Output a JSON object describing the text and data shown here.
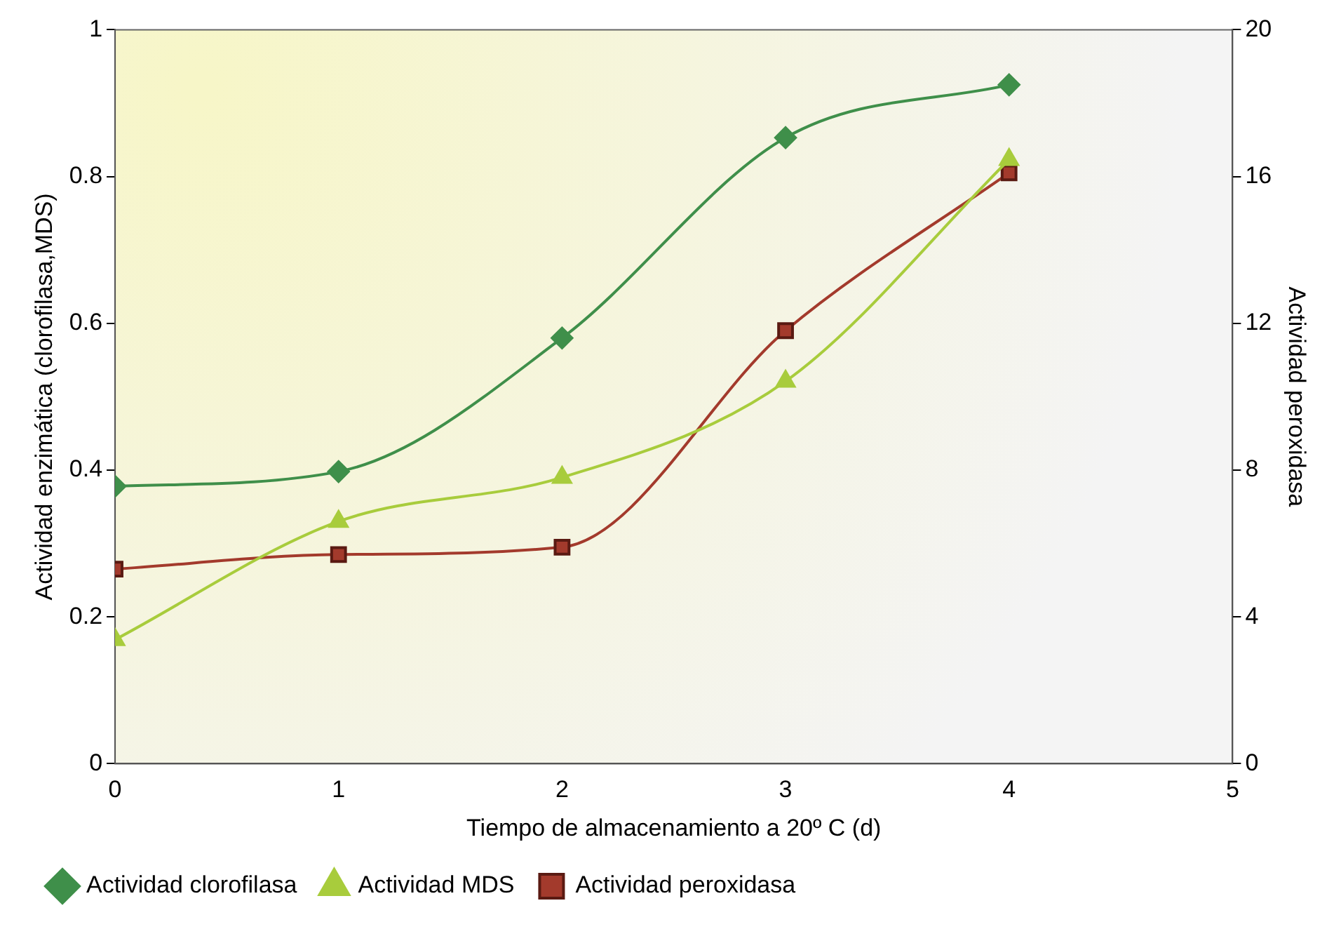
{
  "chart_data": {
    "type": "line",
    "xlabel": "Tiempo de almacenamiento a 20º C (d)",
    "ylabel": "Actividad enzimática (clorofilasa,MDS)",
    "y2label": "Actividad peroxidasa",
    "x": [
      0,
      1,
      2,
      3,
      4
    ],
    "xlim": [
      0,
      5
    ],
    "xticks": [
      0,
      1,
      2,
      3,
      4,
      5
    ],
    "ylim": [
      0,
      1
    ],
    "yticks": [
      0,
      0.2,
      0.4,
      0.6,
      0.8,
      1
    ],
    "y2lim": [
      0,
      20
    ],
    "y2ticks": [
      0,
      4,
      8,
      12,
      16,
      20
    ],
    "series": [
      {
        "name": "Actividad clorofilasa",
        "color": "#3f8f4a",
        "marker": "diamond",
        "values": [
          0.378,
          0.398,
          0.58,
          0.853,
          0.925
        ]
      },
      {
        "name": "Actividad MDS",
        "color": "#a8cc3c",
        "marker": "triangle",
        "values": [
          0.169,
          0.33,
          0.39,
          0.521,
          0.823
        ]
      },
      {
        "name": "Actividad peroxidasa",
        "color": "#a33a2c",
        "marker": "square",
        "axis": "y2",
        "values": [
          5.3,
          5.7,
          5.9,
          11.8,
          16.1
        ]
      }
    ],
    "grid": false,
    "legend": "bottom"
  }
}
